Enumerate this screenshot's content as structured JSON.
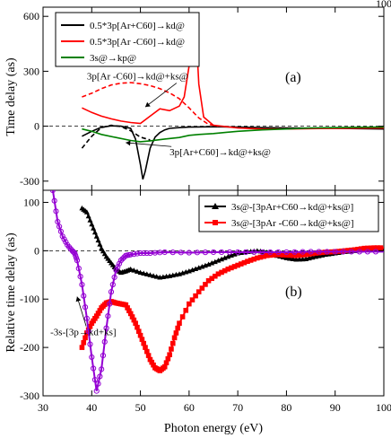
{
  "chart_data": [
    {
      "panel": "a",
      "type": "line",
      "panel_label": "(a)",
      "ylabel": "Time delay (as)",
      "xlim": [
        30,
        100
      ],
      "ylim": [
        -350,
        650
      ],
      "x_ticks": [
        "30",
        "40",
        "50",
        "60",
        "70",
        "80",
        "90",
        "100"
      ],
      "y_ticks": [
        {
          "v": -300,
          "label": "-300"
        },
        {
          "v": 0,
          "label": "0"
        },
        {
          "v": 300,
          "label": "300"
        },
        {
          "v": 600,
          "label": "600"
        }
      ],
      "reference_line_y": 0,
      "legend_position": "top-left",
      "legend": [
        {
          "label": "0.5*3p[Ar+C60]→kd@",
          "color": "#000000",
          "style": "solid"
        },
        {
          "label": "0.5*3p[Ar -C60]→kd@",
          "color": "#ff0000",
          "style": "solid"
        },
        {
          "label": "3s@→kp@",
          "color": "#008000",
          "style": "solid"
        }
      ],
      "series": [
        {
          "name": "0.5*3p[Ar+C60]→kd@",
          "color": "#000000",
          "style": "solid",
          "x": [
            38,
            40,
            42,
            44,
            46,
            48,
            49,
            50,
            50.5,
            51,
            52,
            53,
            54,
            55,
            56,
            58,
            60,
            62,
            65,
            70,
            75,
            80,
            90,
            100
          ],
          "y": [
            -55,
            -28,
            -6,
            2,
            0,
            -12,
            -70,
            -210,
            -290,
            -245,
            -120,
            -60,
            -35,
            -20,
            -12,
            -8,
            -5,
            -4,
            -3,
            -5,
            -8,
            -10,
            -12,
            -15
          ]
        },
        {
          "name": "0.5*3p[Ar -C60]→kd@",
          "color": "#ff0000",
          "style": "solid",
          "x": [
            38,
            40,
            42,
            44,
            46,
            48,
            50,
            52,
            54,
            56,
            58,
            59,
            60,
            60.5,
            61,
            61.5,
            62,
            63,
            65,
            70,
            75,
            80,
            90,
            100
          ],
          "y": [
            100,
            75,
            55,
            40,
            28,
            20,
            15,
            55,
            95,
            85,
            110,
            160,
            330,
            480,
            620,
            480,
            230,
            50,
            5,
            -10,
            -15,
            -15,
            -12,
            -10
          ]
        },
        {
          "name": "3s@→kp@",
          "color": "#008000",
          "style": "solid",
          "x": [
            38,
            40,
            42,
            45,
            48,
            50,
            52,
            55,
            58,
            60,
            62,
            65,
            70,
            75,
            80,
            85,
            90,
            95,
            100
          ],
          "y": [
            -15,
            -28,
            -45,
            -62,
            -78,
            -85,
            -80,
            -70,
            -62,
            -50,
            -45,
            -40,
            -28,
            -20,
            -15,
            -10,
            -8,
            -6,
            -5
          ]
        },
        {
          "name": "",
          "color": "#ff0000",
          "style": "dashed",
          "x": [
            38,
            40,
            42,
            44,
            46,
            48,
            50,
            52,
            54,
            56,
            58,
            60,
            62,
            64,
            66
          ],
          "y": [
            160,
            180,
            205,
            225,
            235,
            238,
            232,
            222,
            205,
            182,
            150,
            100,
            45,
            10,
            0
          ]
        },
        {
          "name": "",
          "color": "#000000",
          "style": "dashed",
          "x": [
            38,
            40,
            42,
            44,
            46,
            48,
            50,
            52
          ],
          "y": [
            -120,
            -55,
            -8,
            5,
            -2,
            -25,
            -60,
            -75
          ]
        }
      ],
      "annotations": [
        {
          "text": "3p[Ar -C60]→kd@+ks@",
          "x": 39,
          "y": 255,
          "arrow_to": [
            51,
            105
          ]
        },
        {
          "text": "3p[Ar+C60]→kd@+ks@",
          "x": 56,
          "y": -160,
          "arrow_to": [
            47,
            -90
          ]
        }
      ]
    },
    {
      "panel": "b",
      "type": "line",
      "panel_label": "(b)",
      "xlabel": "Photon energy (eV)",
      "ylabel": "Relative time delay (as)",
      "xlim": [
        30,
        100
      ],
      "ylim": [
        -300,
        125
      ],
      "x_ticks": [
        {
          "v": 30,
          "label": "30"
        },
        {
          "v": 40,
          "label": "40"
        },
        {
          "v": 50,
          "label": "50"
        },
        {
          "v": 60,
          "label": "60"
        },
        {
          "v": 70,
          "label": "70"
        },
        {
          "v": 80,
          "label": "80"
        },
        {
          "v": 90,
          "label": "90"
        },
        {
          "v": 100,
          "label": "100"
        }
      ],
      "y_ticks": [
        {
          "v": -300,
          "label": "-300"
        },
        {
          "v": -200,
          "label": "-200"
        },
        {
          "v": -100,
          "label": "-100"
        },
        {
          "v": 0,
          "label": "0"
        },
        {
          "v": 100,
          "label": "100"
        }
      ],
      "reference_line_y": 0,
      "legend_position": "top-right",
      "legend": [
        {
          "label": "3s@-[3pAr+C60→kd@+ks@]",
          "color": "#000000",
          "marker": "triangle"
        },
        {
          "label": "3s@-[3pAr -C60→kd@+ks@]",
          "color": "#ff0000",
          "marker": "square"
        }
      ],
      "series": [
        {
          "name": "3s@-[3pAr+C60→kd@+ks@]",
          "color": "#000000",
          "marker": "triangle",
          "x": [
            38,
            39,
            40,
            41,
            42,
            43,
            44,
            45,
            46,
            47,
            48,
            50,
            52,
            54,
            56,
            58,
            60,
            62,
            64,
            66,
            68,
            70,
            72,
            74,
            76,
            78,
            80,
            82,
            84,
            86,
            88,
            90,
            92,
            94,
            96,
            98,
            100
          ],
          "y": [
            88,
            80,
            55,
            30,
            5,
            -12,
            -25,
            -38,
            -45,
            -42,
            -38,
            -45,
            -50,
            -55,
            -52,
            -48,
            -42,
            -35,
            -28,
            -20,
            -12,
            -5,
            -2,
            0,
            -3,
            -10,
            -15,
            -18,
            -17,
            -12,
            -8,
            -5,
            -2,
            0,
            2,
            3,
            3
          ]
        },
        {
          "name": "3s@-[3pAr -C60→kd@+ks@]",
          "color": "#ff0000",
          "marker": "square",
          "x": [
            38,
            39,
            40,
            41,
            42,
            43,
            44,
            45,
            46,
            47,
            48,
            49,
            50,
            51,
            52,
            53,
            54,
            55,
            56,
            57,
            58,
            60,
            62,
            64,
            66,
            68,
            70,
            72,
            74,
            76,
            78,
            80,
            82,
            84,
            86,
            88,
            90,
            92,
            94,
            96,
            98,
            100
          ],
          "y": [
            -200,
            -170,
            -150,
            -135,
            -118,
            -108,
            -105,
            -108,
            -110,
            -112,
            -130,
            -150,
            -175,
            -200,
            -225,
            -242,
            -248,
            -240,
            -215,
            -180,
            -150,
            -110,
            -85,
            -62,
            -48,
            -38,
            -30,
            -22,
            -15,
            -10,
            -8,
            -9,
            -10,
            -8,
            -5,
            -3,
            -2,
            0,
            2,
            5,
            6,
            6
          ]
        },
        {
          "name": "",
          "color": "#9400d3",
          "marker": "circle",
          "x": [
            32,
            33,
            34,
            35,
            36,
            36.5,
            37,
            38,
            39,
            40,
            41,
            42,
            43,
            44,
            45,
            46,
            47,
            48,
            50,
            52,
            55,
            60,
            65,
            70,
            75,
            80,
            85,
            90,
            95,
            100
          ],
          "y": [
            125,
            60,
            30,
            12,
            0,
            -5,
            -20,
            -70,
            -140,
            -220,
            -290,
            -245,
            -160,
            -85,
            -40,
            -20,
            -10,
            -8,
            -5,
            -5,
            -3,
            -4,
            -3,
            -3,
            -3,
            -3,
            -2,
            -2,
            -2,
            -2
          ]
        }
      ],
      "annotations": [
        {
          "text": "-3s-[3p→kd+ks]",
          "x": 31.5,
          "y": -175,
          "arrow_to": [
            37,
            -95
          ]
        }
      ]
    }
  ]
}
